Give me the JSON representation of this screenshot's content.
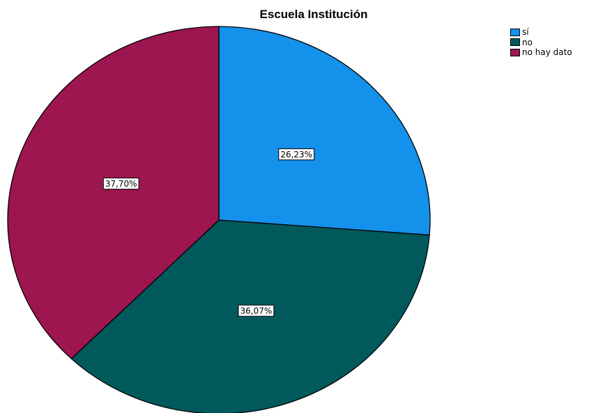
{
  "chart_data": {
    "type": "pie",
    "title": "Escuela Institución",
    "legend_position": "top-right",
    "slices": [
      {
        "name": "sí",
        "value": 26.23,
        "label": "26,23%",
        "color": "#1491EA"
      },
      {
        "name": "no",
        "value": 36.07,
        "label": "36,07%",
        "color": "#01595C"
      },
      {
        "name": "no hay dato",
        "value": 37.7,
        "label": "37,70%",
        "color": "#9D164F"
      }
    ]
  }
}
